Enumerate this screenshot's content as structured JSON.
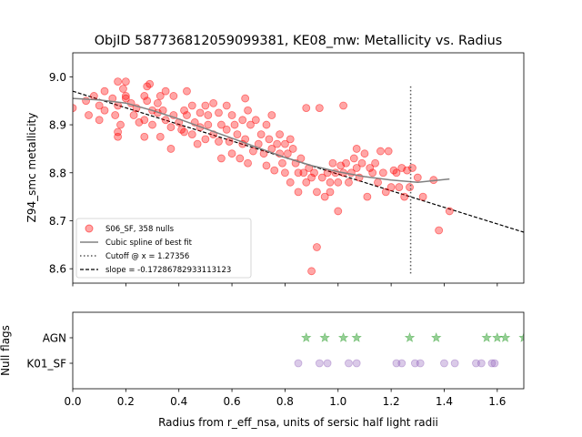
{
  "chart_data": [
    {
      "type": "scatter",
      "title": "ObjID 587736812059099381, KE08_mw: Metallicity vs. Radius",
      "xlabel": "",
      "ylabel": "Z94_smc metallicity",
      "xlim": [
        0,
        1.7
      ],
      "ylim": [
        8.57,
        9.05
      ],
      "yticks": [
        "8.6",
        "8.7",
        "8.8",
        "8.9",
        "9.0"
      ],
      "legend_position": "lower-left",
      "colors": {
        "points": "#ff0000",
        "spline": "#808080",
        "cutoff": "#555555",
        "slope": "#000000"
      },
      "series": [
        {
          "name": "S06_SF, 358 nulls",
          "points": [
            [
              0.0,
              8.935
            ],
            [
              0.05,
              8.95
            ],
            [
              0.06,
              8.92
            ],
            [
              0.08,
              8.96
            ],
            [
              0.1,
              8.94
            ],
            [
              0.1,
              8.91
            ],
            [
              0.12,
              8.97
            ],
            [
              0.12,
              8.93
            ],
            [
              0.15,
              8.955
            ],
            [
              0.16,
              8.92
            ],
            [
              0.17,
              8.94
            ],
            [
              0.17,
              8.99
            ],
            [
              0.19,
              8.975
            ],
            [
              0.18,
              8.9
            ],
            [
              0.2,
              8.955
            ],
            [
              0.2,
              8.96
            ],
            [
              0.2,
              8.99
            ],
            [
              0.17,
              8.875
            ],
            [
              0.17,
              8.885
            ],
            [
              0.22,
              8.945
            ],
            [
              0.23,
              8.92
            ],
            [
              0.24,
              8.935
            ],
            [
              0.25,
              8.905
            ],
            [
              0.27,
              8.875
            ],
            [
              0.27,
              8.96
            ],
            [
              0.27,
              8.91
            ],
            [
              0.28,
              8.98
            ],
            [
              0.29,
              8.985
            ],
            [
              0.28,
              8.95
            ],
            [
              0.3,
              8.93
            ],
            [
              0.3,
              8.9
            ],
            [
              0.32,
              8.945
            ],
            [
              0.32,
              8.925
            ],
            [
              0.33,
              8.875
            ],
            [
              0.33,
              8.96
            ],
            [
              0.34,
              8.93
            ],
            [
              0.35,
              8.91
            ],
            [
              0.35,
              8.97
            ],
            [
              0.37,
              8.895
            ],
            [
              0.37,
              8.85
            ],
            [
              0.38,
              8.92
            ],
            [
              0.38,
              8.96
            ],
            [
              0.4,
              8.905
            ],
            [
              0.41,
              8.89
            ],
            [
              0.42,
              8.93
            ],
            [
              0.42,
              8.885
            ],
            [
              0.43,
              8.92
            ],
            [
              0.43,
              8.97
            ],
            [
              0.45,
              8.94
            ],
            [
              0.45,
              8.88
            ],
            [
              0.46,
              8.905
            ],
            [
              0.47,
              8.86
            ],
            [
              0.48,
              8.925
            ],
            [
              0.48,
              8.895
            ],
            [
              0.5,
              8.94
            ],
            [
              0.5,
              8.87
            ],
            [
              0.51,
              8.92
            ],
            [
              0.51,
              8.9
            ],
            [
              0.53,
              8.945
            ],
            [
              0.53,
              8.88
            ],
            [
              0.55,
              8.925
            ],
            [
              0.55,
              8.865
            ],
            [
              0.56,
              8.9
            ],
            [
              0.56,
              8.83
            ],
            [
              0.58,
              8.94
            ],
            [
              0.58,
              8.89
            ],
            [
              0.59,
              8.865
            ],
            [
              0.6,
              8.92
            ],
            [
              0.6,
              8.84
            ],
            [
              0.61,
              8.9
            ],
            [
              0.62,
              8.88
            ],
            [
              0.63,
              8.83
            ],
            [
              0.64,
              8.91
            ],
            [
              0.64,
              8.86
            ],
            [
              0.65,
              8.955
            ],
            [
              0.65,
              8.87
            ],
            [
              0.66,
              8.93
            ],
            [
              0.66,
              8.82
            ],
            [
              0.67,
              8.9
            ],
            [
              0.68,
              8.845
            ],
            [
              0.69,
              8.91
            ],
            [
              0.7,
              8.86
            ],
            [
              0.71,
              8.88
            ],
            [
              0.72,
              8.84
            ],
            [
              0.73,
              8.9
            ],
            [
              0.73,
              8.815
            ],
            [
              0.74,
              8.87
            ],
            [
              0.75,
              8.85
            ],
            [
              0.75,
              8.92
            ],
            [
              0.76,
              8.805
            ],
            [
              0.77,
              8.86
            ],
            [
              0.78,
              8.84
            ],
            [
              0.78,
              8.88
            ],
            [
              0.79,
              8.82
            ],
            [
              0.8,
              8.86
            ],
            [
              0.8,
              8.8
            ],
            [
              0.81,
              8.84
            ],
            [
              0.82,
              8.87
            ],
            [
              0.82,
              8.78
            ],
            [
              0.83,
              8.85
            ],
            [
              0.84,
              8.82
            ],
            [
              0.85,
              8.8
            ],
            [
              0.85,
              8.76
            ],
            [
              0.86,
              8.83
            ],
            [
              0.87,
              8.8
            ],
            [
              0.88,
              8.78
            ],
            [
              0.88,
              8.935
            ],
            [
              0.89,
              8.81
            ],
            [
              0.9,
              8.79
            ],
            [
              0.9,
              8.595
            ],
            [
              0.91,
              8.8
            ],
            [
              0.92,
              8.76
            ],
            [
              0.92,
              8.645
            ],
            [
              0.93,
              8.935
            ],
            [
              0.94,
              8.79
            ],
            [
              0.95,
              8.75
            ],
            [
              0.96,
              8.8
            ],
            [
              0.97,
              8.78
            ],
            [
              0.97,
              8.76
            ],
            [
              0.98,
              8.82
            ],
            [
              0.99,
              8.8
            ],
            [
              1.0,
              8.78
            ],
            [
              1.0,
              8.72
            ],
            [
              1.01,
              8.815
            ],
            [
              1.02,
              8.8
            ],
            [
              1.02,
              8.94
            ],
            [
              1.03,
              8.82
            ],
            [
              1.04,
              8.78
            ],
            [
              1.05,
              8.8
            ],
            [
              1.06,
              8.83
            ],
            [
              1.07,
              8.81
            ],
            [
              1.07,
              8.85
            ],
            [
              1.08,
              8.79
            ],
            [
              1.09,
              8.82
            ],
            [
              1.1,
              8.84
            ],
            [
              1.11,
              8.75
            ],
            [
              1.12,
              8.81
            ],
            [
              1.13,
              8.8
            ],
            [
              1.14,
              8.82
            ],
            [
              1.15,
              8.78
            ],
            [
              1.16,
              8.845
            ],
            [
              1.17,
              8.8
            ],
            [
              1.18,
              8.76
            ],
            [
              1.19,
              8.845
            ],
            [
              1.2,
              8.77
            ],
            [
              1.21,
              8.805
            ],
            [
              1.22,
              8.8
            ],
            [
              1.23,
              8.77
            ],
            [
              1.24,
              8.81
            ],
            [
              1.25,
              8.75
            ],
            [
              1.26,
              8.805
            ],
            [
              1.27,
              8.77
            ],
            [
              1.28,
              8.81
            ],
            [
              1.3,
              8.79
            ],
            [
              1.32,
              8.75
            ],
            [
              1.36,
              8.785
            ],
            [
              1.38,
              8.68
            ],
            [
              1.42,
              8.72
            ]
          ]
        },
        {
          "name": "Cubic spline of best fit",
          "points": [
            [
              0,
              8.955
            ],
            [
              0.1,
              8.952
            ],
            [
              0.2,
              8.945
            ],
            [
              0.3,
              8.93
            ],
            [
              0.4,
              8.912
            ],
            [
              0.5,
              8.892
            ],
            [
              0.6,
              8.872
            ],
            [
              0.7,
              8.852
            ],
            [
              0.8,
              8.832
            ],
            [
              0.9,
              8.815
            ],
            [
              1.0,
              8.802
            ],
            [
              1.1,
              8.792
            ],
            [
              1.2,
              8.785
            ],
            [
              1.3,
              8.78
            ],
            [
              1.42,
              8.787
            ]
          ]
        },
        {
          "name": "Cutoff @ x = 1.27356",
          "x": 1.27356,
          "y_range": [
            8.59,
            8.98
          ]
        },
        {
          "name": "slope = -0.17286782933113123",
          "intercept": 8.97,
          "slope": -0.17286782933113123
        }
      ]
    },
    {
      "type": "scatter",
      "title": "",
      "xlabel": "Radius from r_eff_nsa, units of sersic half light radii",
      "ylabel": "Null flags",
      "xlim": [
        0,
        1.7
      ],
      "xticks": [
        "0.0",
        "0.2",
        "0.4",
        "0.6",
        "0.8",
        "1.0",
        "1.2",
        "1.4",
        "1.6"
      ],
      "categories": [
        "K01_SF",
        "AGN"
      ],
      "colors": {
        "AGN": "#2ca02c",
        "K01_SF": "#9467bd"
      },
      "series": [
        {
          "name": "AGN",
          "x": [
            0.88,
            0.95,
            1.02,
            1.07,
            1.27,
            1.37,
            1.56,
            1.6,
            1.63,
            1.7
          ]
        },
        {
          "name": "K01_SF",
          "x": [
            0.85,
            0.93,
            0.96,
            1.04,
            1.07,
            1.22,
            1.24,
            1.29,
            1.31,
            1.4,
            1.44,
            1.52,
            1.54,
            1.58,
            1.59
          ]
        }
      ]
    }
  ]
}
